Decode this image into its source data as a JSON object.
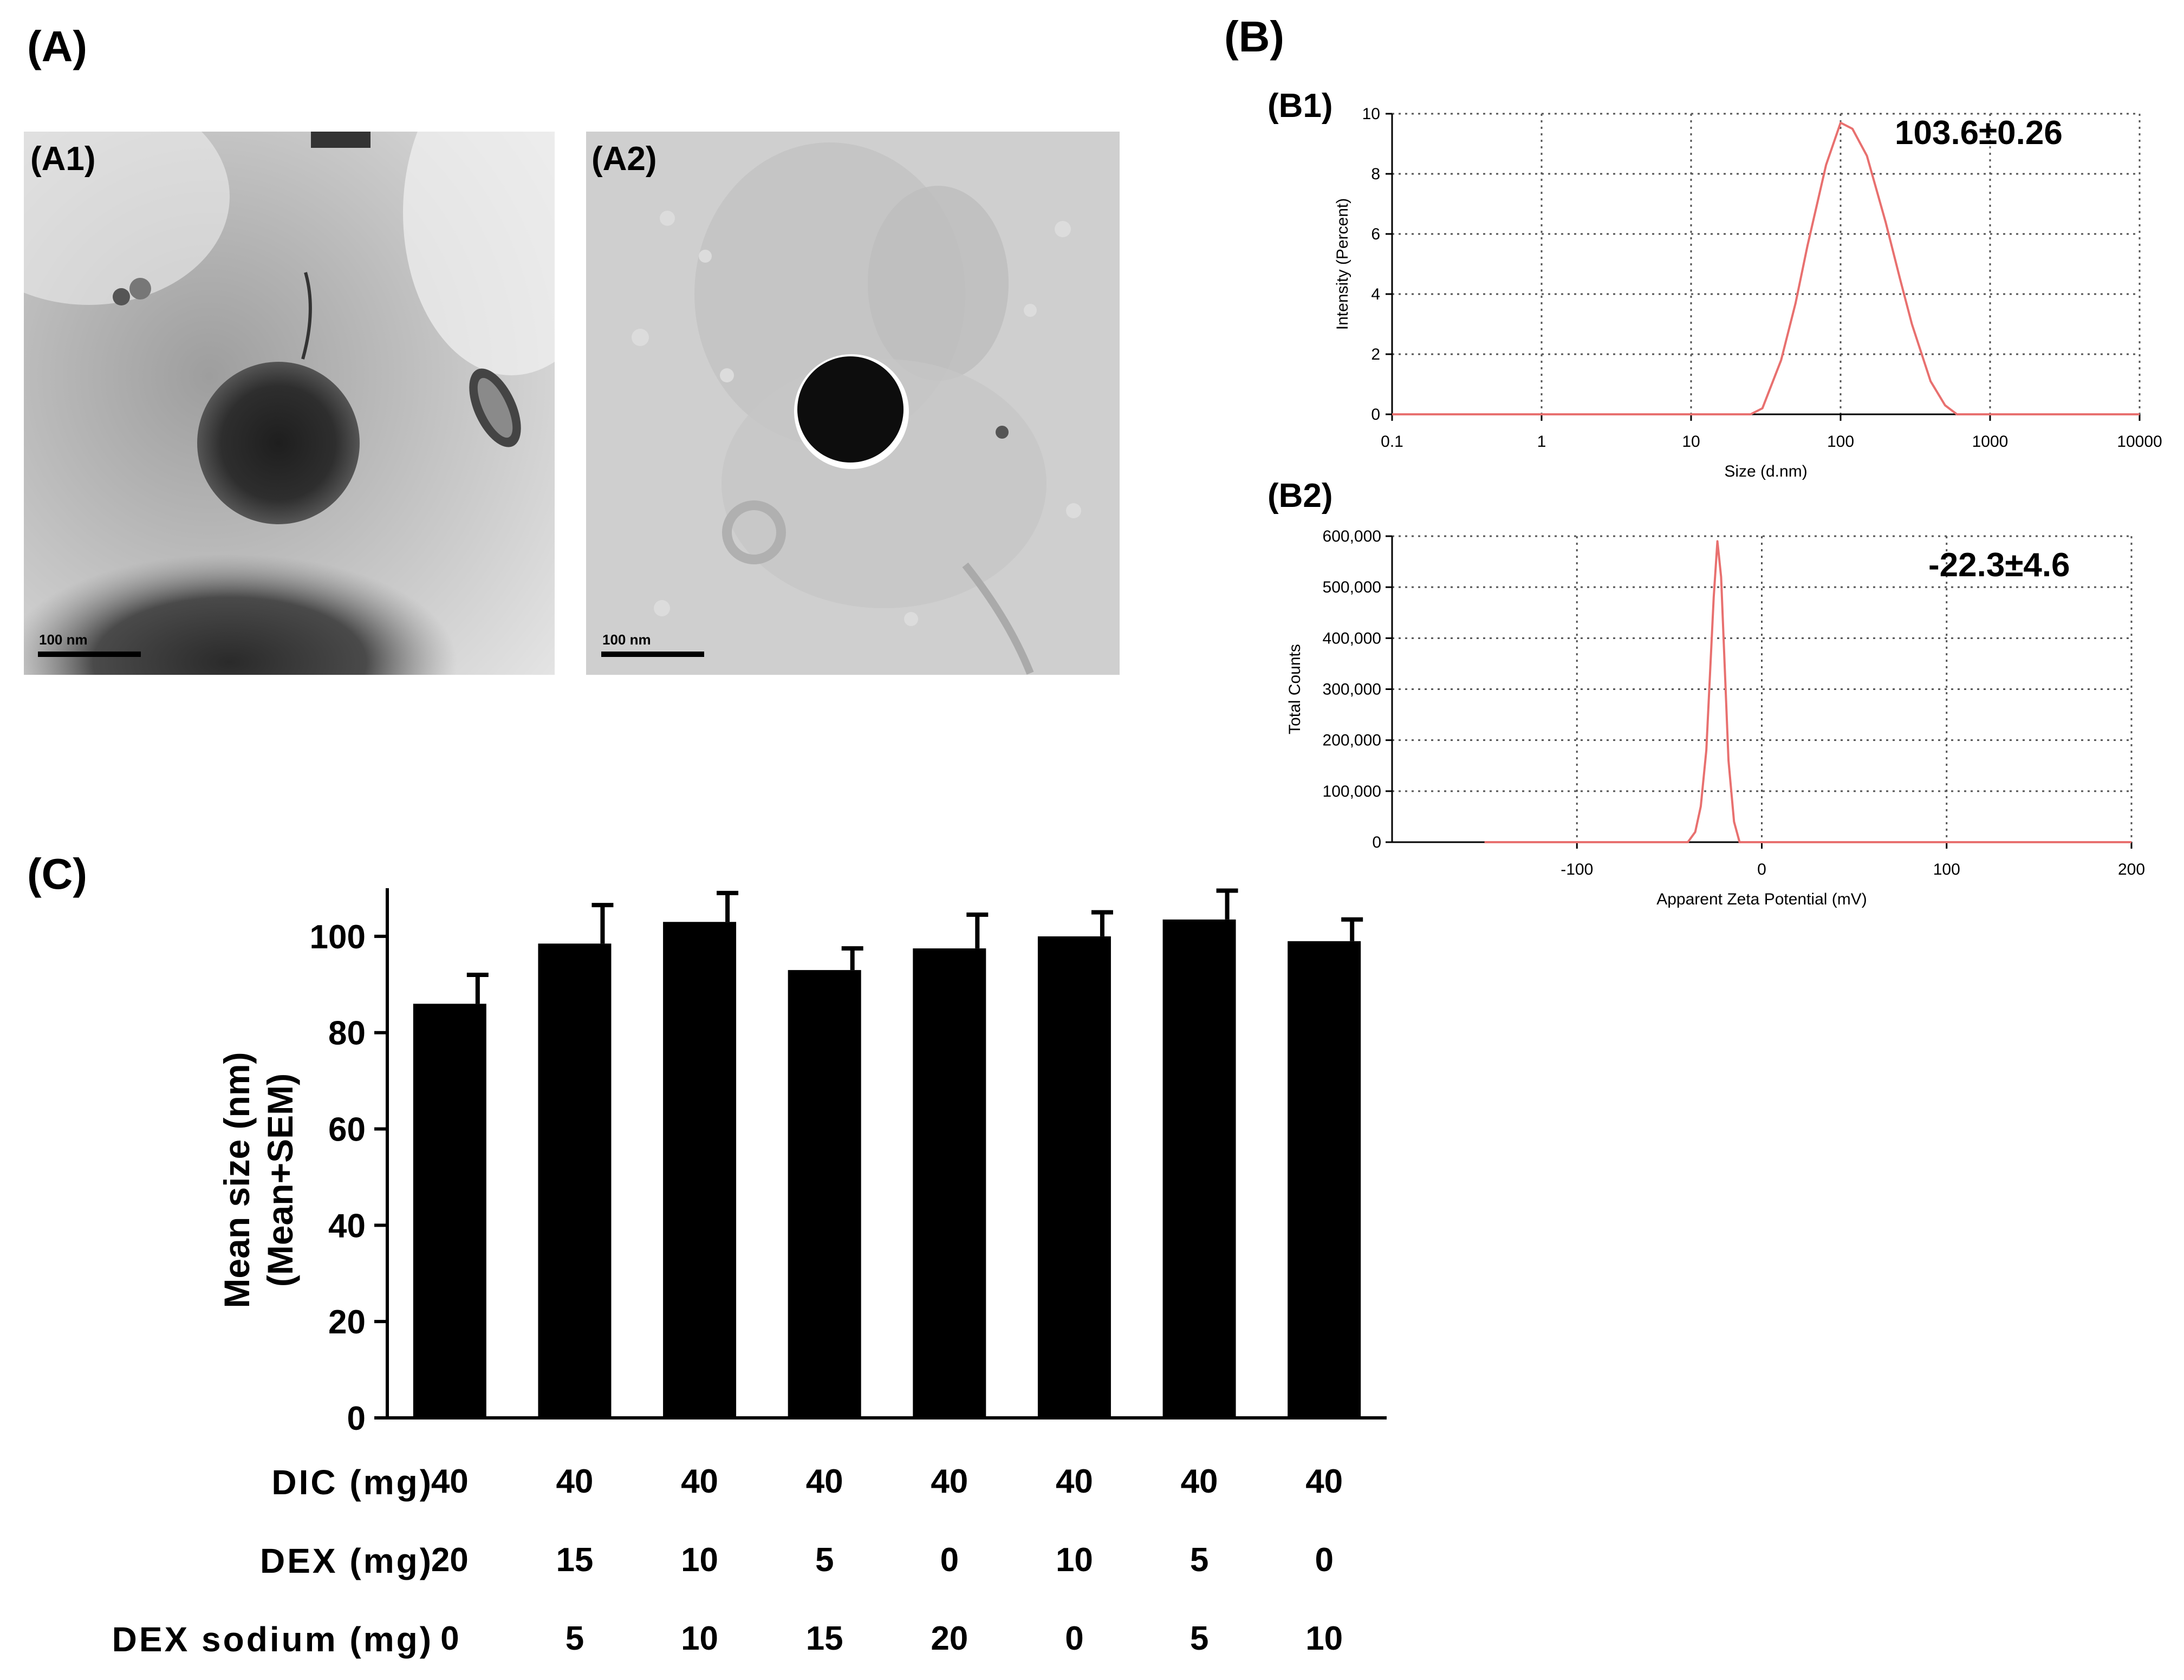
{
  "figure": {
    "panel_a": {
      "label": "(A)",
      "a1": {
        "label": "(A1)",
        "scale_bar": "100 nm"
      },
      "a2": {
        "label": "(A2)",
        "scale_bar": "100 nm"
      }
    },
    "panel_b": {
      "label": "(B)",
      "b1": {
        "label": "(B1)",
        "annotation": "103.6±0.26"
      },
      "b2": {
        "label": "(B2)",
        "annotation": "-22.3±4.6"
      }
    },
    "panel_c": {
      "label": "(C)",
      "table": {
        "rows": [
          {
            "header": "DIC (mg)",
            "values": [
              "40",
              "40",
              "40",
              "40",
              "40",
              "40",
              "40",
              "40"
            ]
          },
          {
            "header": "DEX (mg)",
            "values": [
              "20",
              "15",
              "10",
              "5",
              "0",
              "10",
              "5",
              "0"
            ]
          },
          {
            "header": "DEX sodium (mg)",
            "values": [
              "0",
              "5",
              "10",
              "15",
              "20",
              "0",
              "5",
              "10"
            ]
          }
        ]
      }
    }
  },
  "chart_data": [
    {
      "id": "B1",
      "type": "line",
      "xlabel": "Size (d.nm)",
      "ylabel": "Intensity (Percent)",
      "xscale": "log",
      "xlim": [
        0.1,
        10000
      ],
      "ylim": [
        0,
        10
      ],
      "xticks": [
        "0.1",
        "1",
        "10",
        "100",
        "1000",
        "10000"
      ],
      "yticks": [
        "0",
        "2",
        "4",
        "6",
        "8",
        "10"
      ],
      "grid": true,
      "color": "#e8706f",
      "x": [
        0.1,
        1,
        10,
        25,
        30,
        40,
        50,
        60,
        80,
        100,
        120,
        150,
        200,
        250,
        300,
        400,
        500,
        600,
        1000,
        10000
      ],
      "y": [
        0,
        0,
        0,
        0,
        0.2,
        1.8,
        3.7,
        5.6,
        8.3,
        9.7,
        9.5,
        8.6,
        6.4,
        4.5,
        3.0,
        1.1,
        0.3,
        0,
        0,
        0
      ]
    },
    {
      "id": "B2",
      "type": "line",
      "xlabel": "Apparent Zeta Potential (mV)",
      "ylabel": "Total Counts",
      "xlim": [
        -200,
        200
      ],
      "ylim": [
        0,
        600000
      ],
      "xticks": [
        "-100",
        "0",
        "100",
        "200"
      ],
      "xtick_values": [
        -100,
        0,
        100,
        200
      ],
      "yticks": [
        "0",
        "100,000",
        "200,000",
        "300,000",
        "400,000",
        "500,000",
        "600,000"
      ],
      "ytick_values": [
        0,
        100000,
        200000,
        300000,
        400000,
        500000,
        600000
      ],
      "grid": true,
      "color": "#e8706f",
      "x": [
        -150,
        -40,
        -36,
        -33,
        -30,
        -28,
        -26,
        -24,
        -22,
        -20,
        -18,
        -15,
        -12,
        200
      ],
      "y": [
        0,
        0,
        20000,
        70000,
        180000,
        330000,
        480000,
        590000,
        520000,
        340000,
        160000,
        40000,
        0,
        0
      ]
    },
    {
      "id": "C",
      "type": "bar",
      "ylabel": "Mean size (nm)",
      "ylabel2": "(Mean+SEM)",
      "ylim": [
        0,
        110
      ],
      "yticks": [
        "0",
        "20",
        "40",
        "60",
        "80",
        "100"
      ],
      "ytick_values": [
        0,
        20,
        40,
        60,
        80,
        100
      ],
      "values": [
        86,
        98.5,
        103,
        93,
        97.5,
        100,
        103.5,
        99
      ],
      "errors": [
        6,
        8,
        6,
        4.5,
        7,
        5,
        6,
        4.5
      ],
      "color": "#000000"
    }
  ]
}
